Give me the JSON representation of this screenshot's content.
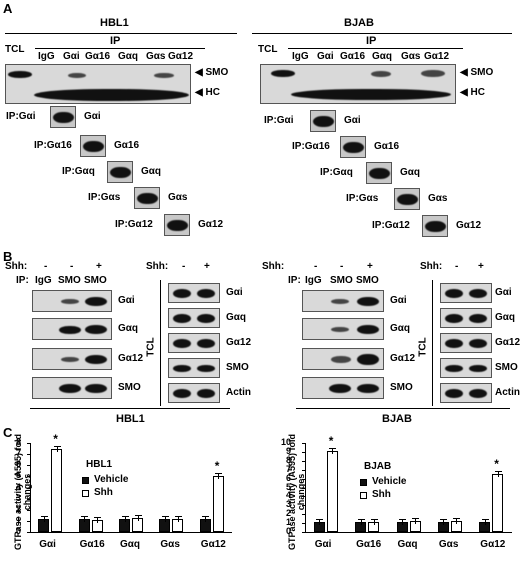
{
  "panels": {
    "a": "A",
    "b": "B",
    "c": "C"
  },
  "cell_lines": {
    "left": "HBL1",
    "right": "BJAB"
  },
  "panelA": {
    "tcl": "TCL",
    "ip": "IP",
    "lanes": [
      "IgG",
      "Gαi",
      "Gα16",
      "Gαq",
      "Gαs",
      "Gα12"
    ],
    "markers": {
      "smo": "SMO",
      "hc": "HC"
    },
    "sub_ip": [
      {
        "ip": "IP:Gαi",
        "protein": "Gαi"
      },
      {
        "ip": "IP:Gα16",
        "protein": "Gα16"
      },
      {
        "ip": "IP:Gαq",
        "protein": "Gαq"
      },
      {
        "ip": "IP:Gαs",
        "protein": "Gαs"
      },
      {
        "ip": "IP:Gα12",
        "protein": "Gα12"
      }
    ]
  },
  "panelB": {
    "shh": "Shh:",
    "ip_label": "IP:",
    "lanes": [
      "IgG",
      "SMO",
      "SMO"
    ],
    "shh_marks": [
      "-",
      "-",
      "+"
    ],
    "tcl_marks": [
      "-",
      "+"
    ],
    "ip_blots": [
      "Gαi",
      "Gαq",
      "Gα12",
      "SMO"
    ],
    "tcl_blots": [
      "Gαi",
      "Gαq",
      "Gα12",
      "SMO",
      "Actin"
    ],
    "tcl": "TCL"
  },
  "chart_data": [
    {
      "type": "bar",
      "title": "HBL1",
      "ylabel": "GTPase activity (A595) fold changes",
      "ylim": [
        0,
        8
      ],
      "yticks": [
        "0",
        "1",
        "2",
        "3",
        "4",
        "5",
        "6",
        "7",
        "8"
      ],
      "categories": [
        "Gαi",
        "Gα16",
        "Gαq",
        "Gαs",
        "Gα12"
      ],
      "series": [
        {
          "name": "Vehicle",
          "values": [
            1.15,
            1.15,
            1.15,
            1.15,
            1.15
          ]
        },
        {
          "name": "Shh",
          "values": [
            7.5,
            1.1,
            1.3,
            1.2,
            5.0
          ]
        }
      ],
      "significance": [
        0,
        4
      ],
      "star": "*",
      "legend_title": "HBL1",
      "legend": "left"
    },
    {
      "type": "bar",
      "title": "BJAB",
      "ylabel": "GTPase activity (A595) fold changes",
      "ylim": [
        0,
        10
      ],
      "yticks": [
        "0",
        "1",
        "2",
        "3",
        "4",
        "5",
        "6",
        "7",
        "8",
        "9",
        "10"
      ],
      "categories": [
        "Gαi",
        "Gα16",
        "Gαq",
        "Gαs",
        "Gα12"
      ],
      "series": [
        {
          "name": "Vehicle",
          "values": [
            1.15,
            1.15,
            1.15,
            1.15,
            1.15
          ]
        },
        {
          "name": "Shh",
          "values": [
            9.1,
            1.15,
            1.25,
            1.25,
            6.5
          ]
        }
      ],
      "significance": [
        0,
        4
      ],
      "star": "*",
      "legend_title": "BJAB",
      "legend": "left"
    }
  ]
}
